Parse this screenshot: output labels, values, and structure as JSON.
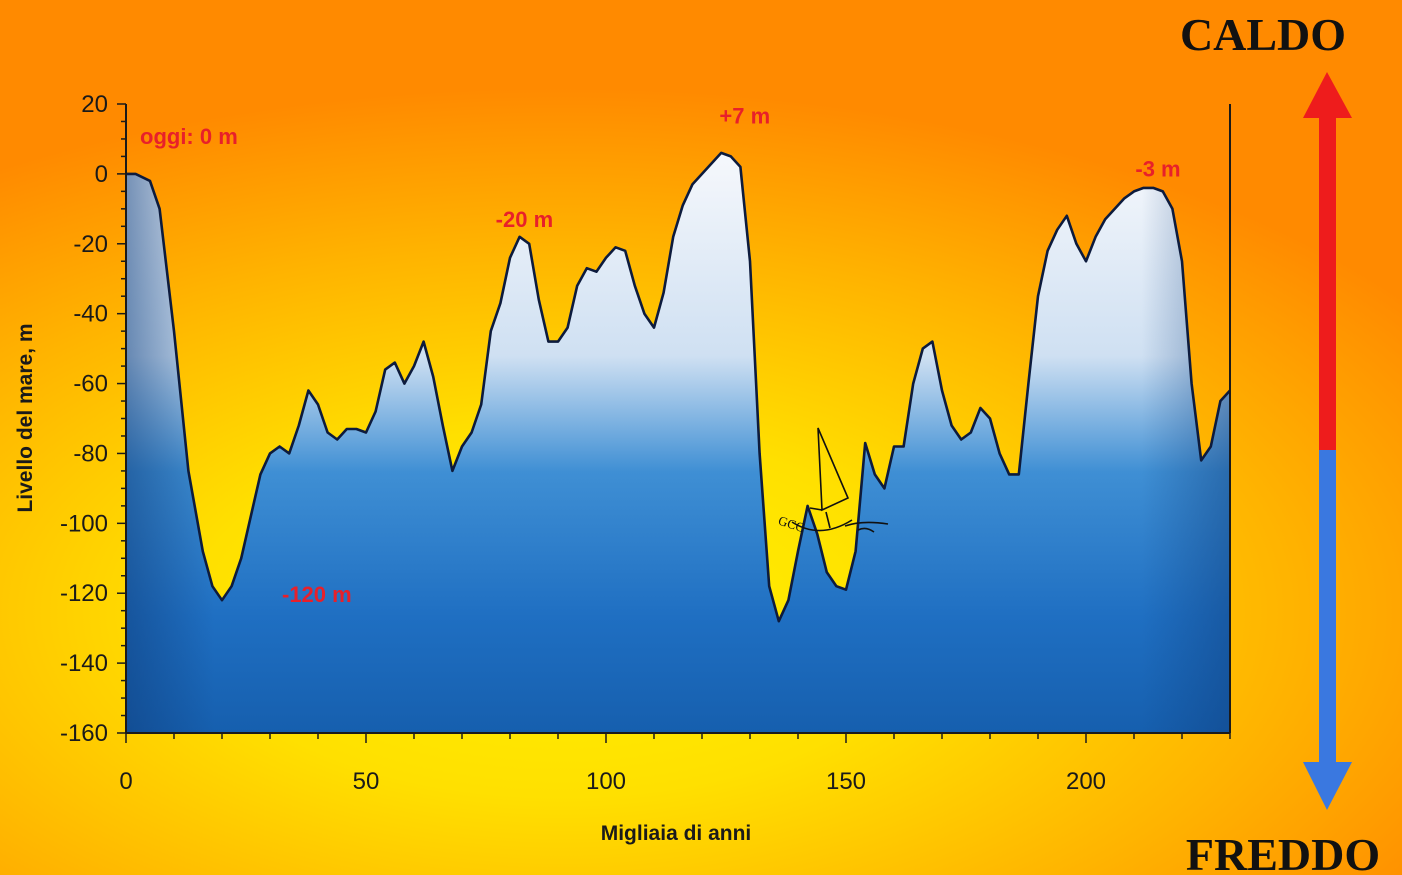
{
  "chart_data": {
    "type": "area",
    "xlabel": "Migliaia di anni",
    "ylabel": "Livello del mare, m",
    "xlim": [
      0,
      230
    ],
    "ylim": [
      -160,
      20
    ],
    "xticks": [
      0,
      50,
      100,
      150,
      200
    ],
    "yticks": [
      20,
      0,
      -20,
      -40,
      -60,
      -80,
      -100,
      -120,
      -140,
      -160
    ],
    "series": [
      {
        "x": [
          0,
          2,
          5,
          7,
          10,
          13,
          16,
          18,
          20,
          22,
          24,
          26,
          28,
          30,
          32,
          34,
          36,
          38,
          40,
          42,
          44,
          46,
          48,
          50,
          52,
          54,
          56,
          58,
          60,
          62,
          64,
          66,
          68,
          70,
          72,
          74,
          76,
          78,
          80,
          82,
          84,
          86,
          88,
          90,
          92,
          94,
          96,
          98,
          100,
          102,
          104,
          106,
          108,
          110,
          112,
          114,
          116,
          118,
          120,
          122,
          124,
          126,
          128,
          130,
          132,
          134,
          136,
          138,
          140,
          142,
          144,
          146,
          148,
          150,
          152,
          154,
          156,
          158,
          160,
          162,
          164,
          166,
          168,
          170,
          172,
          174,
          176,
          178,
          180,
          182,
          184,
          186,
          188,
          190,
          192,
          194,
          196,
          198,
          200,
          202,
          204,
          206,
          208,
          210,
          212,
          214,
          216,
          218,
          220,
          222,
          224,
          226,
          228,
          230
        ],
        "values": [
          0,
          0,
          -2,
          -10,
          -45,
          -85,
          -108,
          -118,
          -122,
          -118,
          -110,
          -98,
          -86,
          -80,
          -78,
          -80,
          -72,
          -62,
          -66,
          -74,
          -76,
          -73,
          -73,
          -74,
          -68,
          -56,
          -54,
          -60,
          -55,
          -48,
          -58,
          -72,
          -85,
          -78,
          -74,
          -66,
          -45,
          -37,
          -24,
          -18,
          -20,
          -36,
          -48,
          -48,
          -44,
          -32,
          -27,
          -28,
          -24,
          -21,
          -22,
          -32,
          -40,
          -44,
          -34,
          -18,
          -9,
          -3,
          0,
          3,
          6,
          5,
          2,
          -25,
          -80,
          -118,
          -128,
          -122,
          -108,
          -95,
          -103,
          -114,
          -118,
          -119,
          -108,
          -77,
          -86,
          -90,
          -78,
          -78,
          -60,
          -50,
          -48,
          -62,
          -72,
          -76,
          -74,
          -67,
          -70,
          -80,
          -86,
          -86,
          -60,
          -35,
          -22,
          -16,
          -12,
          -20,
          -25,
          -18,
          -13,
          -10,
          -7,
          -5,
          -4,
          -4,
          -5,
          -10,
          -25,
          -60,
          -82,
          -78,
          -65,
          -62
        ]
      }
    ],
    "annotations": [
      {
        "text": "oggi: 0 m",
        "x": 0,
        "y": 0
      },
      {
        "text": "-120 m",
        "x": 20,
        "y": -120
      },
      {
        "text": "-20 m",
        "x": 83,
        "y": -18
      },
      {
        "text": "+7 m",
        "x": 126,
        "y": 7
      },
      {
        "text": "-3 m",
        "x": 215,
        "y": -3
      }
    ]
  },
  "scale_indicator": {
    "top_label": "CALDO",
    "bottom_label": "FREDDO",
    "warm_color": "#ee1c1c",
    "cold_color": "#3a78e0"
  },
  "logo_text": "GCC"
}
